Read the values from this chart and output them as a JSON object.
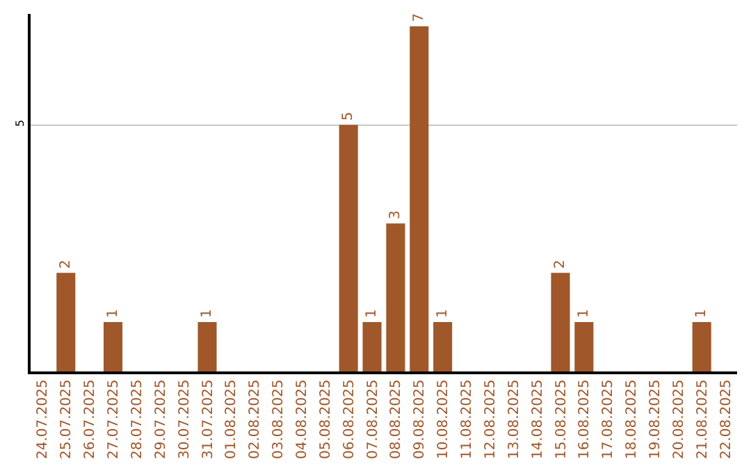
{
  "chart_data": {
    "type": "bar",
    "categories": [
      "24.07.2025",
      "25.07.2025",
      "26.07.2025",
      "27.07.2025",
      "28.07.2025",
      "29.07.2025",
      "30.07.2025",
      "31.07.2025",
      "01.08.2025",
      "02.08.2025",
      "03.08.2025",
      "04.08.2025",
      "05.08.2025",
      "06.08.2025",
      "07.08.2025",
      "08.08.2025",
      "09.08.2025",
      "10.08.2025",
      "11.08.2025",
      "12.08.2025",
      "13.08.2025",
      "14.08.2025",
      "15.08.2025",
      "16.08.2025",
      "17.08.2025",
      "18.08.2025",
      "19.08.2025",
      "20.08.2025",
      "21.08.2025",
      "22.08.2025"
    ],
    "values": [
      0,
      2,
      0,
      1,
      0,
      0,
      0,
      1,
      0,
      0,
      0,
      0,
      0,
      5,
      1,
      3,
      7,
      1,
      0,
      0,
      0,
      0,
      2,
      1,
      0,
      0,
      0,
      0,
      1,
      0
    ],
    "value_labels": [
      null,
      "2",
      null,
      "1",
      null,
      null,
      null,
      "1",
      null,
      null,
      null,
      null,
      null,
      "5",
      "1",
      "3",
      "7",
      "1",
      null,
      null,
      null,
      null,
      "2",
      "1",
      null,
      null,
      null,
      null,
      "1",
      null
    ],
    "color": "#a0572a",
    "ylim": [
      0,
      7.25
    ],
    "yticks": [
      5
    ],
    "grid": "y",
    "legend": false
  }
}
